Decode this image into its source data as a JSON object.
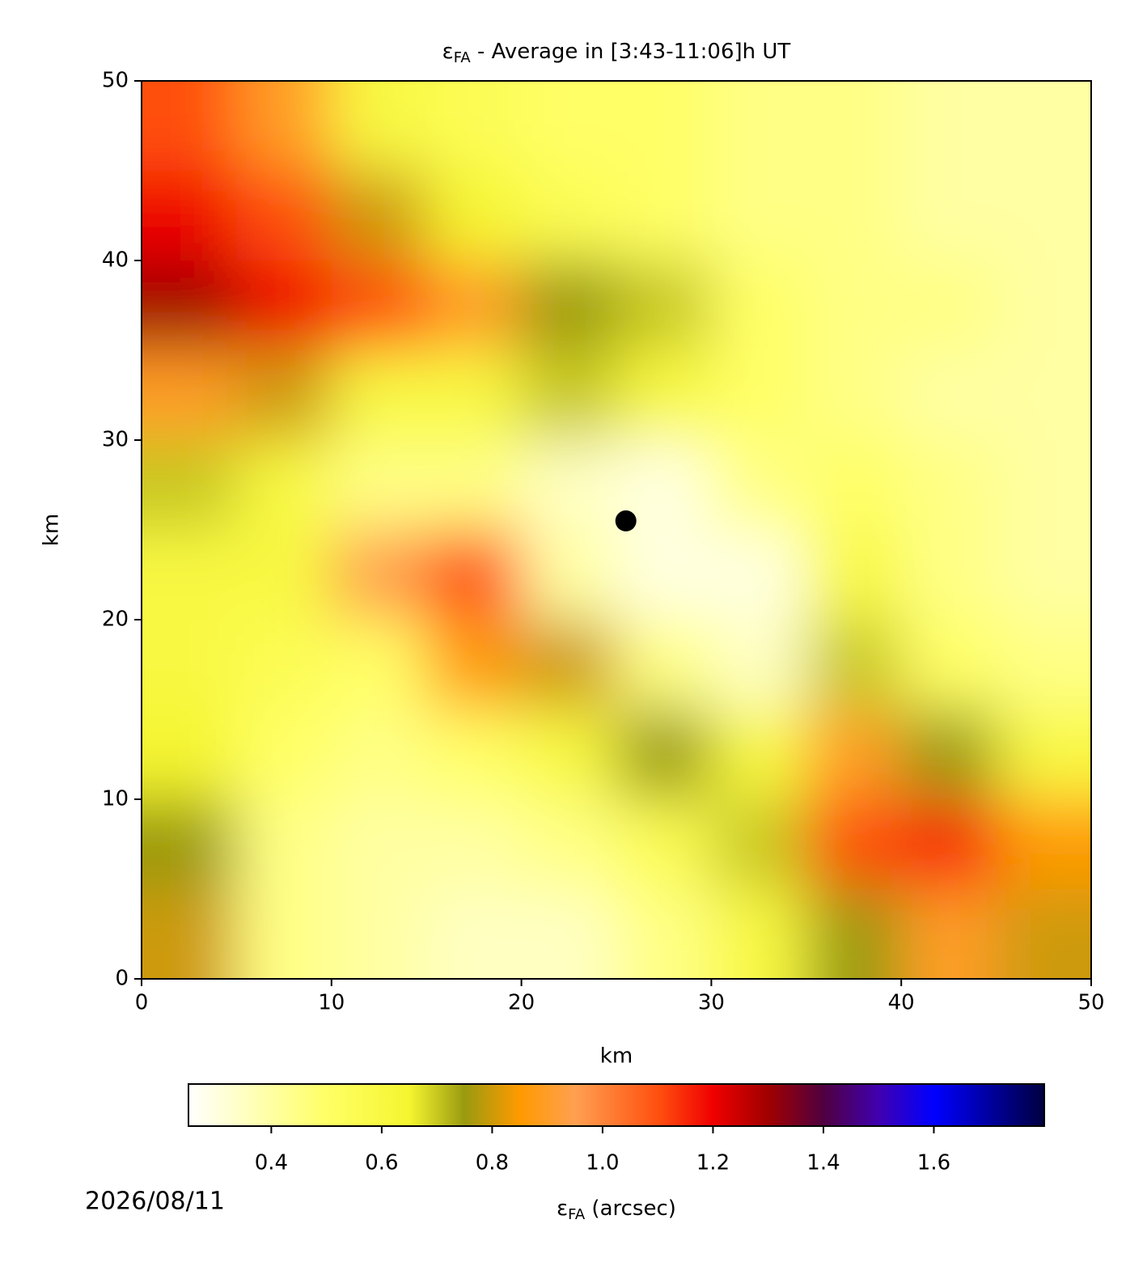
{
  "chart_data": {
    "type": "heatmap",
    "title": {
      "symbol": "ε",
      "subscript": "FA",
      "text": " - Average in [3:43-11:06]h UT"
    },
    "xlabel": "km",
    "ylabel": "km",
    "xlim": [
      0,
      50
    ],
    "ylim": [
      0,
      50
    ],
    "xticks": [
      0,
      10,
      20,
      30,
      40,
      50
    ],
    "yticks": [
      0,
      10,
      20,
      30,
      40,
      50
    ],
    "x": [
      2.5,
      7.5,
      12.5,
      17.5,
      22.5,
      27.5,
      32.5,
      37.5,
      42.5,
      47.5
    ],
    "y": [
      47.5,
      42.5,
      37.5,
      32.5,
      27.5,
      22.5,
      17.5,
      12.5,
      7.5,
      2.5
    ],
    "z": [
      [
        1.1,
        0.9,
        0.6,
        0.55,
        0.5,
        0.5,
        0.45,
        0.45,
        0.4,
        0.4
      ],
      [
        1.2,
        1.1,
        0.8,
        0.65,
        0.55,
        0.5,
        0.45,
        0.45,
        0.4,
        0.4
      ],
      [
        1.3,
        1.2,
        1.1,
        0.9,
        0.75,
        0.7,
        0.5,
        0.45,
        0.45,
        0.4
      ],
      [
        0.9,
        0.8,
        0.6,
        0.6,
        0.7,
        0.6,
        0.5,
        0.45,
        0.4,
        0.4
      ],
      [
        0.7,
        0.6,
        0.45,
        0.45,
        0.35,
        0.3,
        0.45,
        0.5,
        0.45,
        0.4
      ],
      [
        0.6,
        0.6,
        0.95,
        1.1,
        0.4,
        0.3,
        0.3,
        0.6,
        0.45,
        0.4
      ],
      [
        0.6,
        0.55,
        0.5,
        0.85,
        0.8,
        0.45,
        0.35,
        0.7,
        0.5,
        0.45
      ],
      [
        0.65,
        0.5,
        0.45,
        0.5,
        0.6,
        0.75,
        0.6,
        0.9,
        0.75,
        0.6
      ],
      [
        0.75,
        0.45,
        0.4,
        0.4,
        0.45,
        0.55,
        0.7,
        1.1,
        1.15,
        0.85
      ],
      [
        0.8,
        0.45,
        0.4,
        0.35,
        0.35,
        0.45,
        0.6,
        0.75,
        0.9,
        0.8
      ]
    ],
    "marker": {
      "x": 25.5,
      "y": 25.5,
      "color": "#000000"
    },
    "colorbar": {
      "label": {
        "symbol": "ε",
        "subscript": "FA",
        "text": " (arcsec)"
      },
      "lim": [
        0.25,
        1.8
      ],
      "ticks": [
        0.4,
        0.6,
        0.8,
        {
          "value": 1,
          "label": "1.0"
        },
        1.2,
        1.4,
        1.6
      ],
      "colormap": [
        {
          "value": 0.25,
          "color": "#ffffff"
        },
        {
          "value": 0.5,
          "color": "#ffff66"
        },
        {
          "value": 0.65,
          "color": "#f5f530"
        },
        {
          "value": 0.75,
          "color": "#9a9a10"
        },
        {
          "value": 0.85,
          "color": "#ff9a00"
        },
        {
          "value": 0.95,
          "color": "#ffa050"
        },
        {
          "value": 1.1,
          "color": "#ff5010"
        },
        {
          "value": 1.2,
          "color": "#f00000"
        },
        {
          "value": 1.3,
          "color": "#a00000"
        },
        {
          "value": 1.4,
          "color": "#500040"
        },
        {
          "value": 1.5,
          "color": "#4000b0"
        },
        {
          "value": 1.6,
          "color": "#0000ff"
        },
        {
          "value": 1.8,
          "color": "#000040"
        }
      ]
    },
    "footer": "2026/08/11"
  }
}
